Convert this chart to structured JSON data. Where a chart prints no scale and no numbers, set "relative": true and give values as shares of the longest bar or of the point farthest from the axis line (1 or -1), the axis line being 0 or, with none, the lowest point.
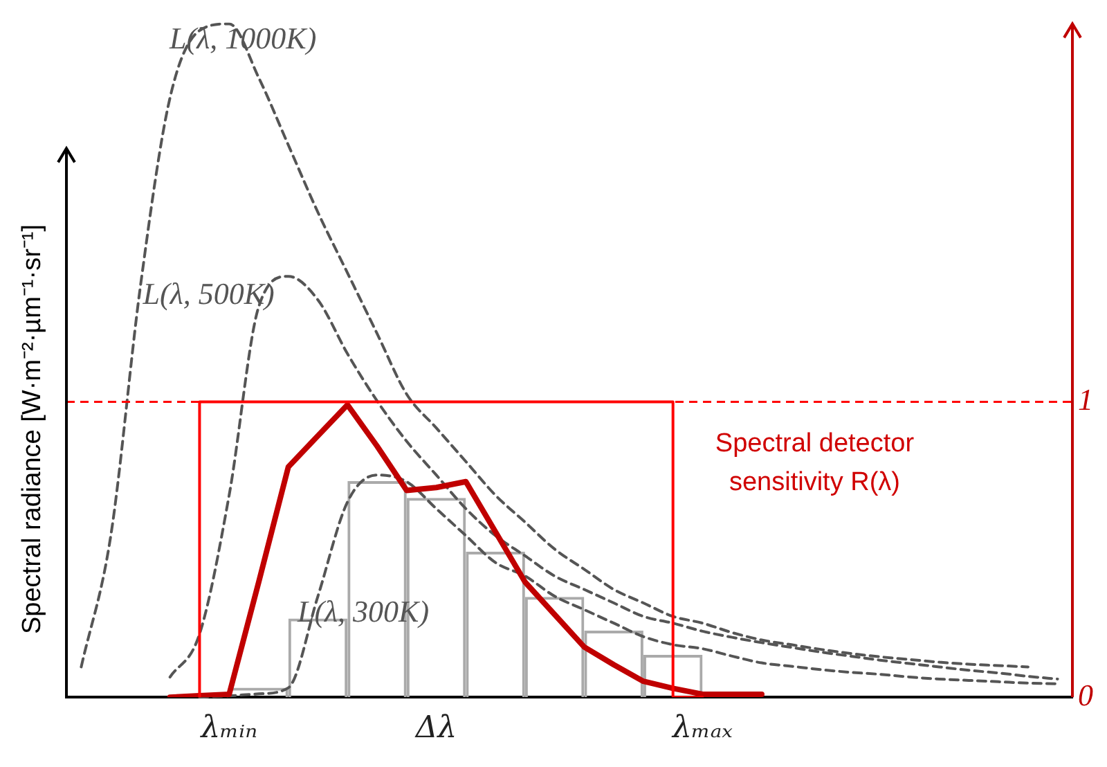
{
  "chart_data": {
    "type": "line",
    "relative": true,
    "ylabel": "Spectral radiance  [W·m⁻²·µm⁻¹·sr⁻¹]",
    "categories": [
      null,
      null,
      null,
      null,
      null,
      "λₘᵢₙ",
      null,
      null,
      null,
      null,
      null,
      null,
      "Δλ",
      null,
      null,
      null,
      null,
      null,
      null,
      null,
      null,
      "λₘₐₓ",
      null,
      null,
      null,
      null,
      null,
      null,
      null,
      null,
      null,
      null,
      null,
      null
    ],
    "y2lim": [
      0,
      2.28
    ],
    "y2ticks": [
      0,
      1
    ],
    "grid": false,
    "legend": false,
    "marker": "none",
    "series": [
      {
        "name": "L(λ, 1000K)",
        "color": "#555555",
        "line_style": "dashed",
        "values": [
          0.045,
          0.24,
          0.61,
          0.89,
          0.99,
          1,
          0.92,
          0.82,
          0.72,
          0.63,
          0.54,
          0.45,
          0.4,
          0.35,
          0.3,
          0.26,
          0.22,
          0.19,
          0.16,
          0.14,
          0.12,
          0.11,
          0.096,
          0.085,
          0.078,
          0.071,
          0.065,
          0.06,
          0.056,
          0.052,
          0.049,
          0.047,
          0.045,
          null
        ]
      },
      {
        "name": "L(λ, 500K)",
        "color": "#555555",
        "line_style": "dashed",
        "values": [
          null,
          null,
          null,
          0.03,
          0.094,
          0.3,
          0.58,
          0.625,
          0.59,
          0.51,
          0.44,
          0.38,
          0.33,
          0.28,
          0.24,
          0.21,
          0.18,
          0.16,
          0.14,
          0.12,
          0.11,
          0.098,
          0.089,
          0.081,
          0.074,
          0.067,
          0.061,
          0.055,
          0.05,
          0.045,
          0.04,
          0.036,
          0.031,
          0.027
        ]
      },
      {
        "name": "L(λ, 300K)",
        "color": "#555555",
        "line_style": "dashed",
        "values": [
          null,
          null,
          null,
          null,
          0,
          0.002,
          0.005,
          0.014,
          0.15,
          0.29,
          0.33,
          0.32,
          0.28,
          0.24,
          0.2,
          0.18,
          0.15,
          0.13,
          0.11,
          0.09,
          0.078,
          0.072,
          0.061,
          0.051,
          0.046,
          0.041,
          0.037,
          0.034,
          0.03,
          0.027,
          0.025,
          0.023,
          0.021,
          0.02
        ]
      },
      {
        "type": "bar",
        "color": "#aaaaaa",
        "values": [
          null,
          null,
          null,
          null,
          null,
          null,
          0.014,
          null,
          0.117,
          null,
          0.321,
          null,
          0.296,
          null,
          0.216,
          null,
          0.149,
          null,
          0.099,
          null,
          0.063,
          null,
          null,
          null,
          null,
          null,
          null,
          null,
          null,
          null,
          null,
          null,
          null,
          null
        ]
      },
      {
        "type": "step",
        "color": "#ff0000",
        "axis": "y2",
        "values": [
          null,
          null,
          null,
          null,
          0,
          1,
          1,
          1,
          1,
          1,
          1,
          1,
          1,
          1,
          1,
          1,
          1,
          1,
          1,
          1,
          1,
          0,
          null,
          null,
          null,
          null,
          null,
          null,
          null,
          null,
          null,
          null,
          null,
          null
        ]
      },
      {
        "color": "#c00000",
        "axis": "y2",
        "values": [
          null,
          null,
          null,
          0,
          0.005,
          0.01,
          0.39,
          0.78,
          0.885,
          0.99,
          0.85,
          0.7,
          0.71,
          0.73,
          0.56,
          0.39,
          0.28,
          0.17,
          0.11,
          0.054,
          0.03,
          0.01,
          0.01,
          0.01,
          null,
          null,
          null,
          null,
          null,
          null,
          null,
          null,
          null,
          null
        ]
      }
    ],
    "ref_lines": [
      {
        "axis": "y2",
        "value": 1,
        "color": "#ff0000",
        "line_style": "dashed"
      }
    ],
    "annotations": [
      "Spectral detector sensitivity R(λ)"
    ]
  }
}
